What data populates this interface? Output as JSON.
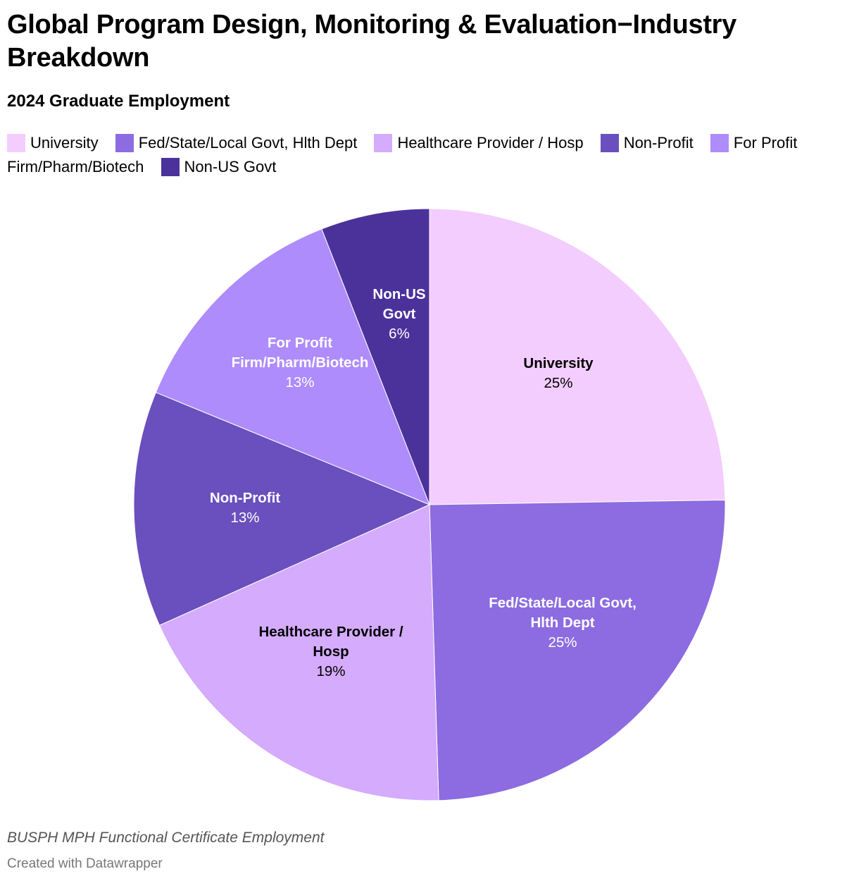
{
  "title": "Global Program Design, Monitoring & Evaluation−Industry Breakdown",
  "subtitle": "2024 Graduate Employment",
  "footer": {
    "note": "BUSPH MPH Functional Certificate Employment",
    "credit": "Created with Datawrapper"
  },
  "legend": [
    {
      "label": "University",
      "color": "#f3cdfd"
    },
    {
      "label": "Fed/State/Local Govt, Hlth Dept",
      "color": "#8c6ce0"
    },
    {
      "label": "Healthcare Provider / Hosp",
      "color": "#d4abfd"
    },
    {
      "label": "Non-Profit",
      "color": "#6a4fbe"
    },
    {
      "label": "For Profit Firm/Pharm/Biotech",
      "color": "#ae8cfc"
    },
    {
      "label": "Non-US Govt",
      "color": "#4b329b"
    }
  ],
  "chart_data": {
    "type": "pie",
    "title": "Global Program Design, Monitoring & Evaluation−Industry Breakdown",
    "subtitle": "2024 Graduate Employment",
    "start": "12 o'clock",
    "direction": "clockwise",
    "slices": [
      {
        "label": "University",
        "label_lines": [
          "University"
        ],
        "value": 25,
        "value_text": "25%",
        "color": "#f3cdfd",
        "text_color": "#000000"
      },
      {
        "label": "Fed/State/Local Govt, Hlth Dept",
        "label_lines": [
          "Fed/State/Local Govt,",
          "Hlth Dept"
        ],
        "value": 25,
        "value_text": "25%",
        "color": "#8c6ce0",
        "text_color": "#ffffff"
      },
      {
        "label": "Healthcare Provider / Hosp",
        "label_lines": [
          "Healthcare Provider /",
          "Hosp"
        ],
        "value": 19,
        "value_text": "19%",
        "color": "#d4abfd",
        "text_color": "#000000"
      },
      {
        "label": "Non-Profit",
        "label_lines": [
          "Non-Profit"
        ],
        "value": 13,
        "value_text": "13%",
        "color": "#6a4fbe",
        "text_color": "#ffffff"
      },
      {
        "label": "For Profit Firm/Pharm/Biotech",
        "label_lines": [
          "For Profit",
          "Firm/Pharm/Biotech"
        ],
        "value": 13,
        "value_text": "13%",
        "color": "#ae8cfc",
        "text_color": "#ffffff"
      },
      {
        "label": "Non-US Govt",
        "label_lines": [
          "Non-US",
          "Govt"
        ],
        "value": 6,
        "value_text": "6%",
        "color": "#4b329b",
        "text_color": "#ffffff"
      }
    ]
  }
}
